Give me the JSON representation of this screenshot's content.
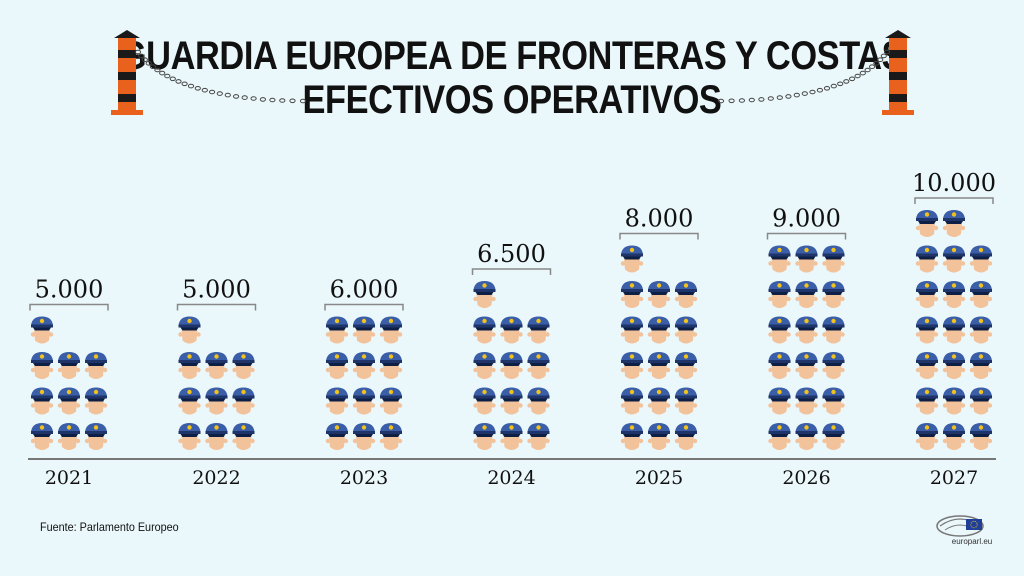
{
  "title_line1": "GUARDIA EUROPEA DE FRONTERAS Y COSTAS",
  "title_line2": "EFECTIVOS OPERATIVOS",
  "source": "Fuente: Parlamento Europeo",
  "logo_text": "europarl.eu",
  "colors": {
    "background": "#eaf7fb",
    "cap": "#3a5ea8",
    "cap_band": "#1f3569",
    "badge": "#f2c21b",
    "face": "#f2c29a",
    "post_orange": "#e8621d",
    "post_black": "#1a1a1a"
  },
  "chart_data": {
    "type": "bar",
    "categories": [
      "2021",
      "2022",
      "2023",
      "2024",
      "2025",
      "2026",
      "2027"
    ],
    "values": [
      5000,
      5000,
      6000,
      6500,
      8000,
      9000,
      10000
    ],
    "value_labels": [
      "5.000",
      "5.000",
      "6.000",
      "6.500",
      "8.000",
      "9.000",
      "10.000"
    ],
    "icon_unit": 500,
    "icons_per_row": 3,
    "title": "GUARDIA EUROPEA DE FRONTERAS Y COSTAS — EFECTIVOS OPERATIVOS",
    "xlabel": "",
    "ylabel": "",
    "grid": false,
    "legend": "none"
  }
}
